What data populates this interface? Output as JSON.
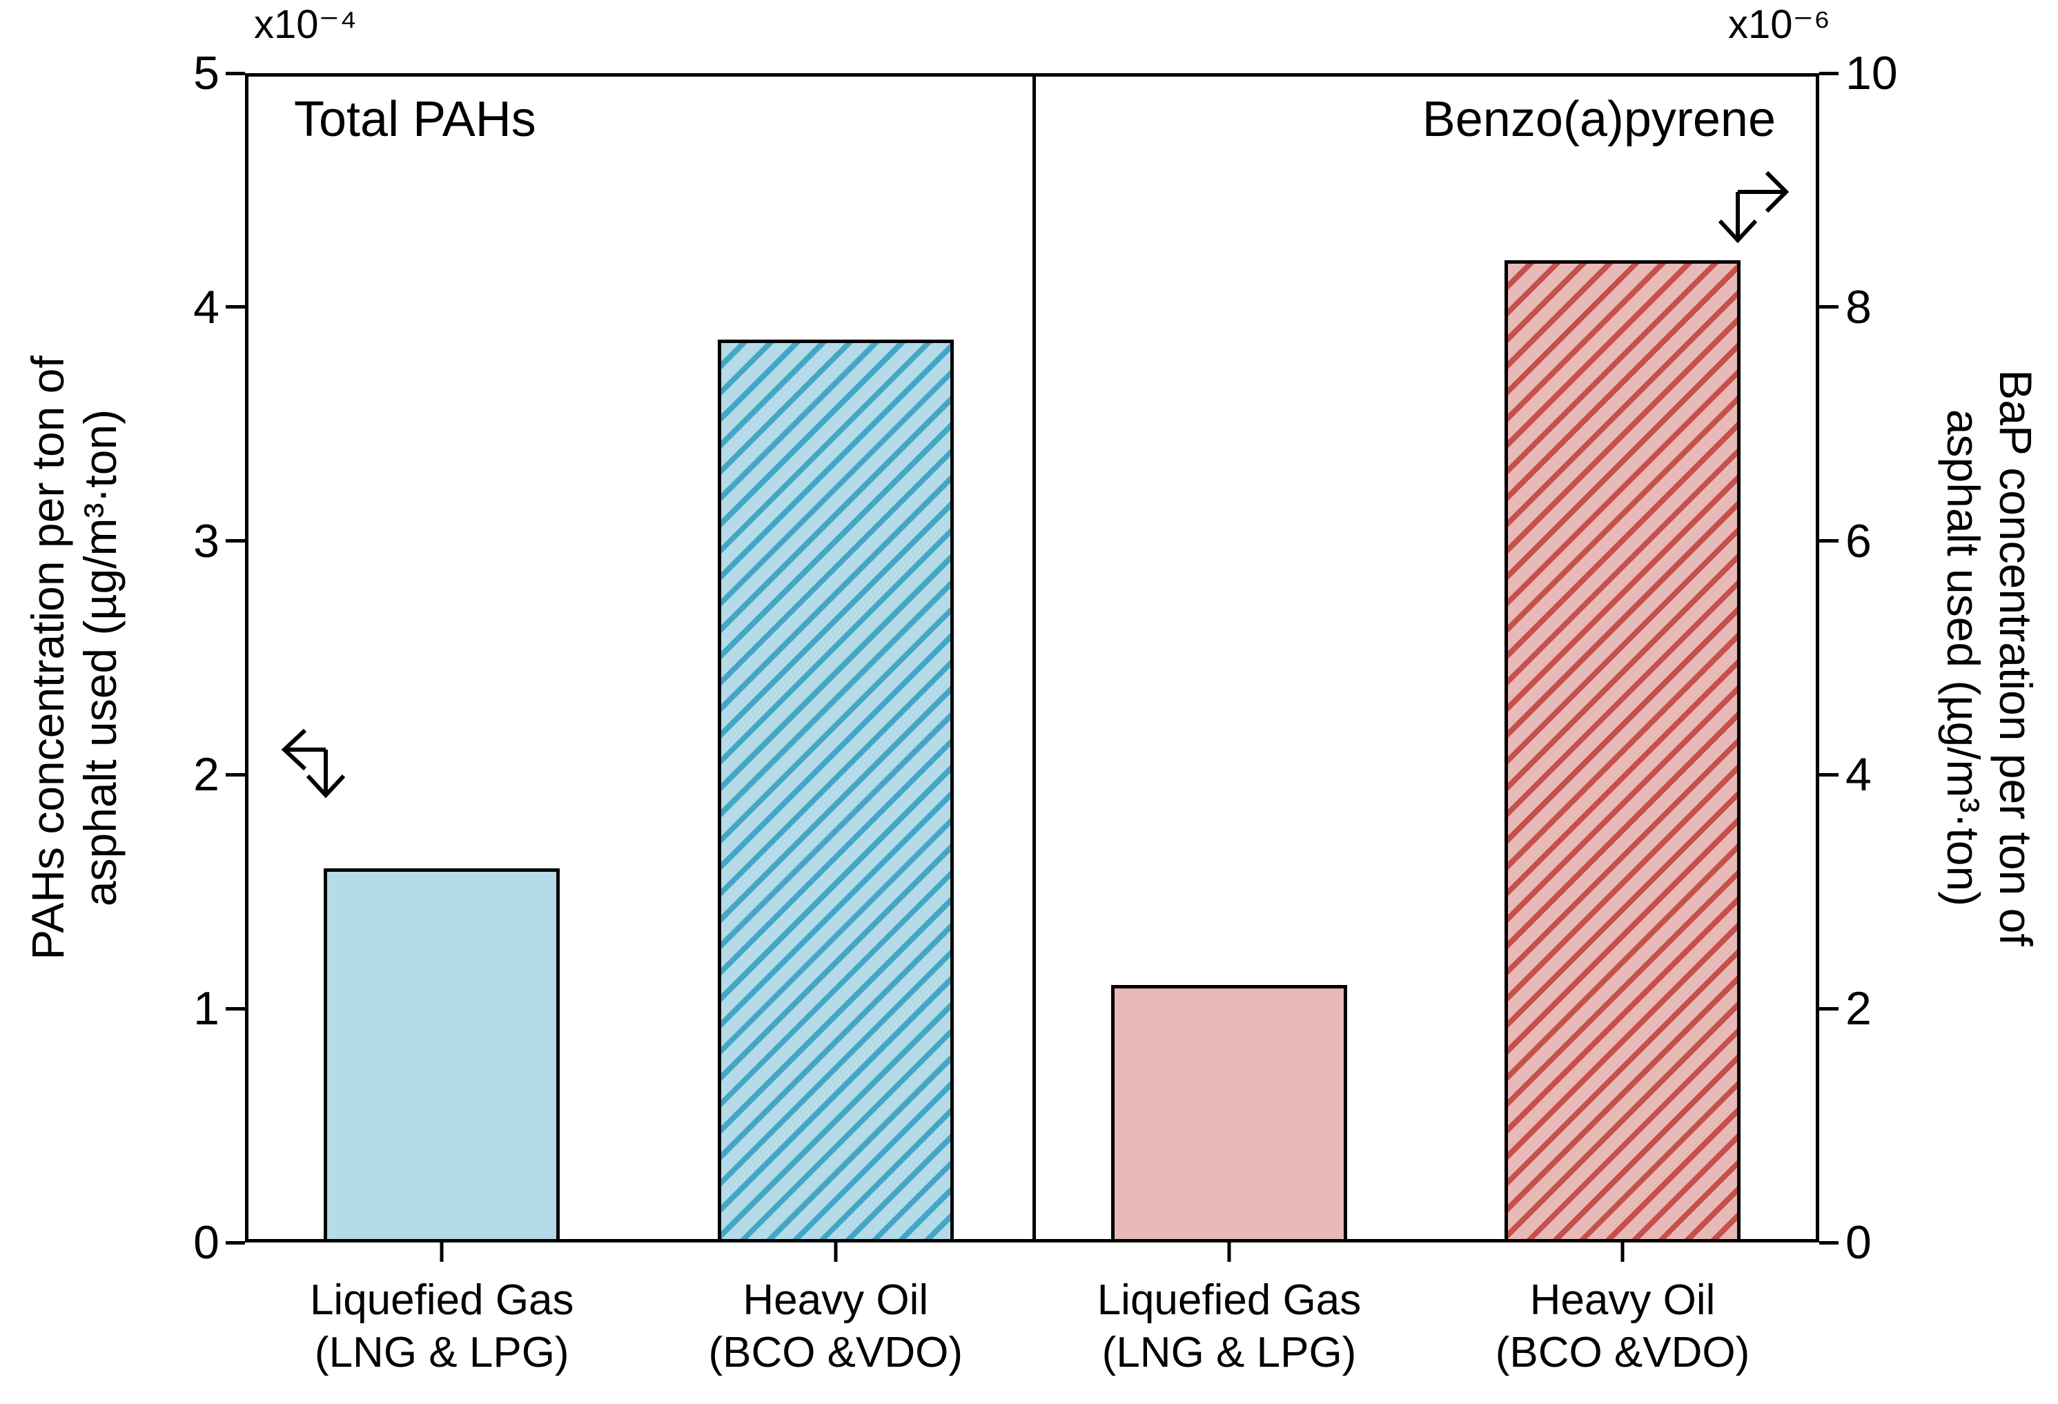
{
  "chart_data": {
    "type": "bar",
    "layout": "two-panel",
    "background": "#ffffff",
    "axis_color": "#000000",
    "grid": false,
    "panels": [
      {
        "title": "Total PAHs",
        "axis_side": "left",
        "offset_label": "x10⁻⁴",
        "ylabel_lines": [
          "PAHs concentration per ton of",
          "asphalt used (µg/m³·ton)"
        ],
        "ylim": [
          0,
          5
        ],
        "yticks": [
          0,
          1,
          2,
          3,
          4,
          5
        ],
        "categories": [
          [
            "Liquefied Gas",
            "(LNG & LPG)"
          ],
          [
            "Heavy Oil",
            "(BCO &VDO)"
          ]
        ],
        "values": [
          1.6,
          3.86
        ],
        "bar_fill": "#b5dbe8",
        "hatch_color": "#44a6c6",
        "hatches": [
          "",
          "/"
        ]
      },
      {
        "title": "Benzo(a)pyrene",
        "axis_side": "right",
        "offset_label": "x10⁻⁶",
        "ylabel_lines": [
          "BaP concentration per ton of",
          "asphalt used (µg/m³·ton)"
        ],
        "ylim": [
          0,
          10
        ],
        "yticks": [
          0,
          2,
          4,
          6,
          8,
          10
        ],
        "categories": [
          [
            "Liquefied Gas",
            "(LNG & LPG)"
          ],
          [
            "Heavy Oil",
            "(BCO &VDO)"
          ]
        ],
        "values": [
          2.2,
          8.4
        ],
        "bar_fill": "#e7bab7",
        "hatch_color": "#c6504b",
        "hatches": [
          "",
          "/"
        ]
      }
    ]
  }
}
